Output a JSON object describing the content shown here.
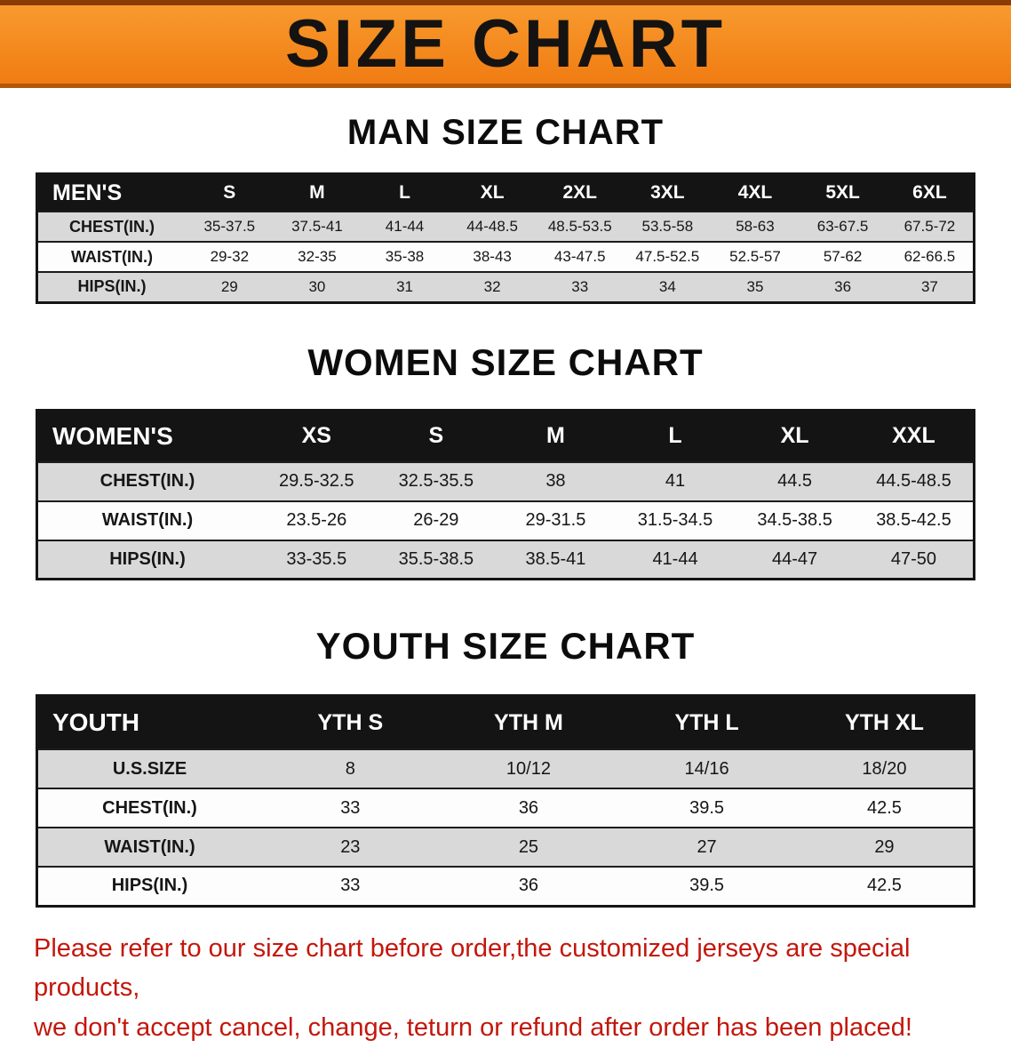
{
  "banner": {
    "title": "SIZE CHART"
  },
  "men": {
    "heading": "MAN SIZE CHART",
    "header": [
      "MEN'S",
      "S",
      "M",
      "L",
      "XL",
      "2XL",
      "3XL",
      "4XL",
      "5XL",
      "6XL"
    ],
    "rows": [
      {
        "label": "CHEST(IN.)",
        "values": [
          "35-37.5",
          "37.5-41",
          "41-44",
          "44-48.5",
          "48.5-53.5",
          "53.5-58",
          "58-63",
          "63-67.5",
          "67.5-72"
        ]
      },
      {
        "label": "WAIST(IN.)",
        "values": [
          "29-32",
          "32-35",
          "35-38",
          "38-43",
          "43-47.5",
          "47.5-52.5",
          "52.5-57",
          "57-62",
          "62-66.5"
        ]
      },
      {
        "label": "HIPS(IN.)",
        "values": [
          "29",
          "30",
          "31",
          "32",
          "33",
          "34",
          "35",
          "36",
          "37"
        ]
      }
    ]
  },
  "women": {
    "heading": "WOMEN SIZE CHART",
    "header": [
      "WOMEN'S",
      "XS",
      "S",
      "M",
      "L",
      "XL",
      "XXL"
    ],
    "rows": [
      {
        "label": "CHEST(IN.)",
        "values": [
          "29.5-32.5",
          "32.5-35.5",
          "38",
          "41",
          "44.5",
          "44.5-48.5"
        ]
      },
      {
        "label": "WAIST(IN.)",
        "values": [
          "23.5-26",
          "26-29",
          "29-31.5",
          "31.5-34.5",
          "34.5-38.5",
          "38.5-42.5"
        ]
      },
      {
        "label": "HIPS(IN.)",
        "values": [
          "33-35.5",
          "35.5-38.5",
          "38.5-41",
          "41-44",
          "44-47",
          "47-50"
        ]
      }
    ]
  },
  "youth": {
    "heading": "YOUTH SIZE CHART",
    "header": [
      "YOUTH",
      "YTH S",
      "YTH M",
      "YTH L",
      "YTH XL"
    ],
    "rows": [
      {
        "label": "U.S.SIZE",
        "values": [
          "8",
          "10/12",
          "14/16",
          "18/20"
        ]
      },
      {
        "label": "CHEST(IN.)",
        "values": [
          "33",
          "36",
          "39.5",
          "42.5"
        ]
      },
      {
        "label": "WAIST(IN.)",
        "values": [
          "23",
          "25",
          "27",
          "29"
        ]
      },
      {
        "label": "HIPS(IN.)",
        "values": [
          "33",
          "36",
          "39.5",
          "42.5"
        ]
      }
    ]
  },
  "footer": {
    "line1": "Please refer to our size chart before order,the customized jerseys are special products,",
    "line2": "we don't accept cancel, change, teturn or refund after order has been placed!"
  },
  "colors": {
    "banner_bg": "#f5831c",
    "table_header_bg": "#141414",
    "row_alt_gray": "#d9d9d9",
    "footer_text": "#c3170c"
  }
}
